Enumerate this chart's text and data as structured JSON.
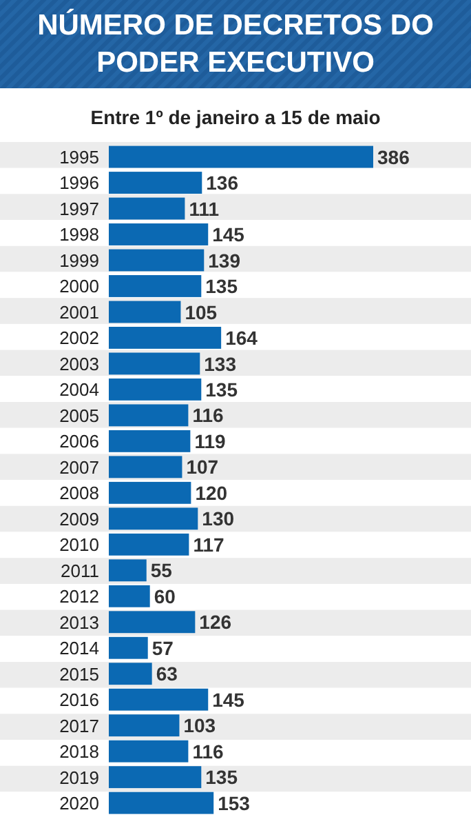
{
  "chart_data": {
    "type": "bar",
    "orientation": "horizontal",
    "title": "NÚMERO DE DECRETOS DO PODER EXECUTIVO",
    "subtitle": "Entre 1º de janeiro a 15 de maio",
    "categories": [
      "1995",
      "1996",
      "1997",
      "1998",
      "1999",
      "2000",
      "2001",
      "2002",
      "2003",
      "2004",
      "2005",
      "2006",
      "2007",
      "2008",
      "2009",
      "2010",
      "2011",
      "2012",
      "2013",
      "2014",
      "2015",
      "2016",
      "2017",
      "2018",
      "2019",
      "2020"
    ],
    "values": [
      386,
      136,
      111,
      145,
      139,
      135,
      105,
      164,
      133,
      135,
      116,
      119,
      107,
      120,
      130,
      117,
      55,
      60,
      126,
      57,
      63,
      145,
      103,
      116,
      135,
      153
    ],
    "color": "#0b69b3",
    "data_labels": true
  }
}
